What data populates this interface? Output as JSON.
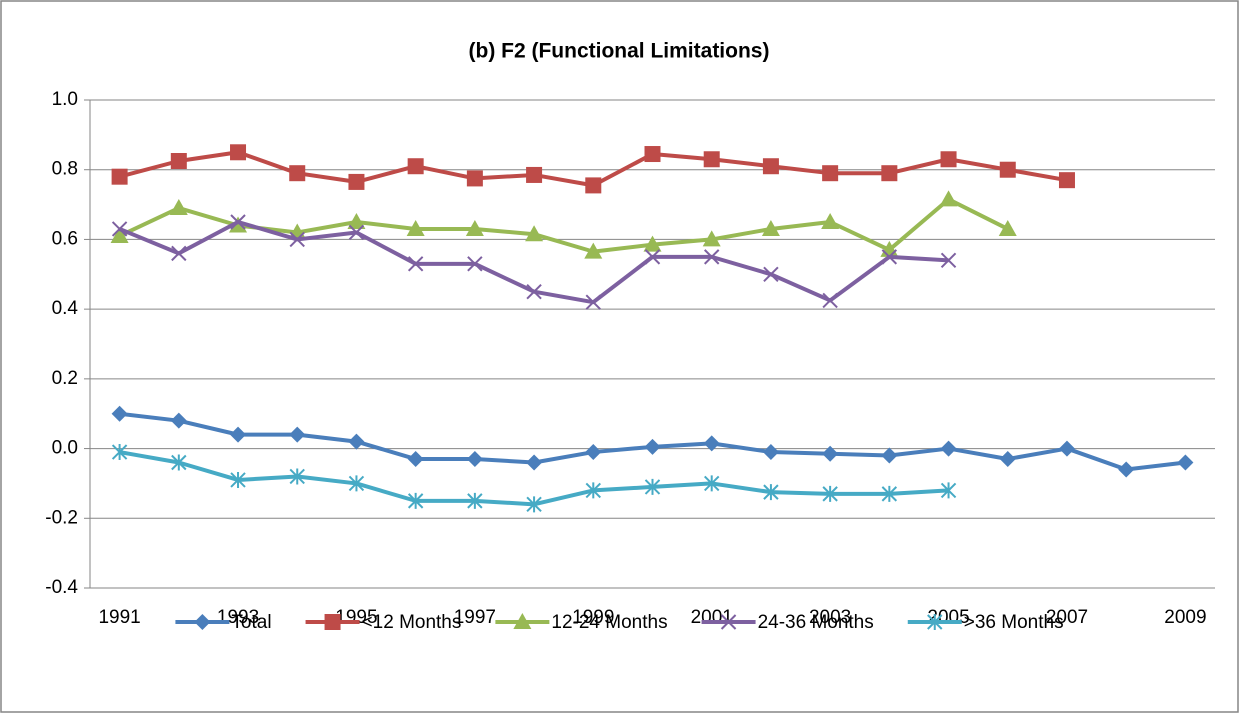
{
  "chart_data": {
    "type": "line",
    "title": "(b) F2  (Functional Limitations)",
    "categories": [
      "1991",
      null,
      "1993",
      null,
      "1995",
      null,
      "1997",
      null,
      "1999",
      null,
      "2001",
      null,
      "2003",
      null,
      "2005",
      null,
      "2007",
      null,
      "2009"
    ],
    "series": [
      {
        "name": "Total",
        "color": "#4a7ebb",
        "marker": "diamond",
        "values": [
          0.1,
          0.08,
          0.04,
          0.04,
          0.02,
          -0.03,
          -0.03,
          -0.04,
          -0.01,
          0.005,
          0.015,
          -0.01,
          -0.015,
          -0.02,
          0.0,
          -0.03,
          0.0,
          -0.06,
          -0.04
        ]
      },
      {
        "name": "<12 Months",
        "color": "#be4b48",
        "marker": "square",
        "values": [
          0.78,
          0.825,
          0.85,
          0.79,
          0.765,
          0.81,
          0.775,
          0.785,
          0.755,
          0.845,
          0.83,
          0.81,
          0.79,
          0.79,
          0.83,
          0.8,
          0.77,
          null,
          null
        ]
      },
      {
        "name": "12-24 Months",
        "color": "#98b954",
        "marker": "triangle",
        "values": [
          0.61,
          0.69,
          0.64,
          0.62,
          0.65,
          0.63,
          0.63,
          0.615,
          0.565,
          0.585,
          0.6,
          0.63,
          0.65,
          0.57,
          0.715,
          0.63,
          null,
          null,
          null
        ]
      },
      {
        "name": "24-36 Months",
        "color": "#7d60a0",
        "marker": "x",
        "values": [
          0.63,
          0.56,
          0.65,
          0.6,
          0.62,
          0.53,
          0.53,
          0.45,
          0.42,
          0.55,
          0.55,
          0.5,
          0.425,
          0.55,
          0.54,
          null,
          null,
          null,
          null
        ]
      },
      {
        "name": ">36 Months",
        "color": "#46aac5",
        "marker": "star",
        "values": [
          -0.01,
          -0.04,
          -0.09,
          -0.08,
          -0.1,
          -0.15,
          -0.15,
          -0.16,
          -0.12,
          -0.11,
          -0.1,
          -0.125,
          -0.13,
          -0.13,
          -0.12,
          null,
          null,
          null,
          null
        ]
      }
    ],
    "ylim": [
      -0.4,
      1.0
    ],
    "yticks": [
      -0.4,
      -0.2,
      {
        "value": 0,
        "label": "0.0"
      },
      0.2,
      0.4,
      0.6,
      0.8,
      {
        "value": 1,
        "label": "1.0"
      }
    ],
    "grid": true,
    "legend": "bottom"
  }
}
